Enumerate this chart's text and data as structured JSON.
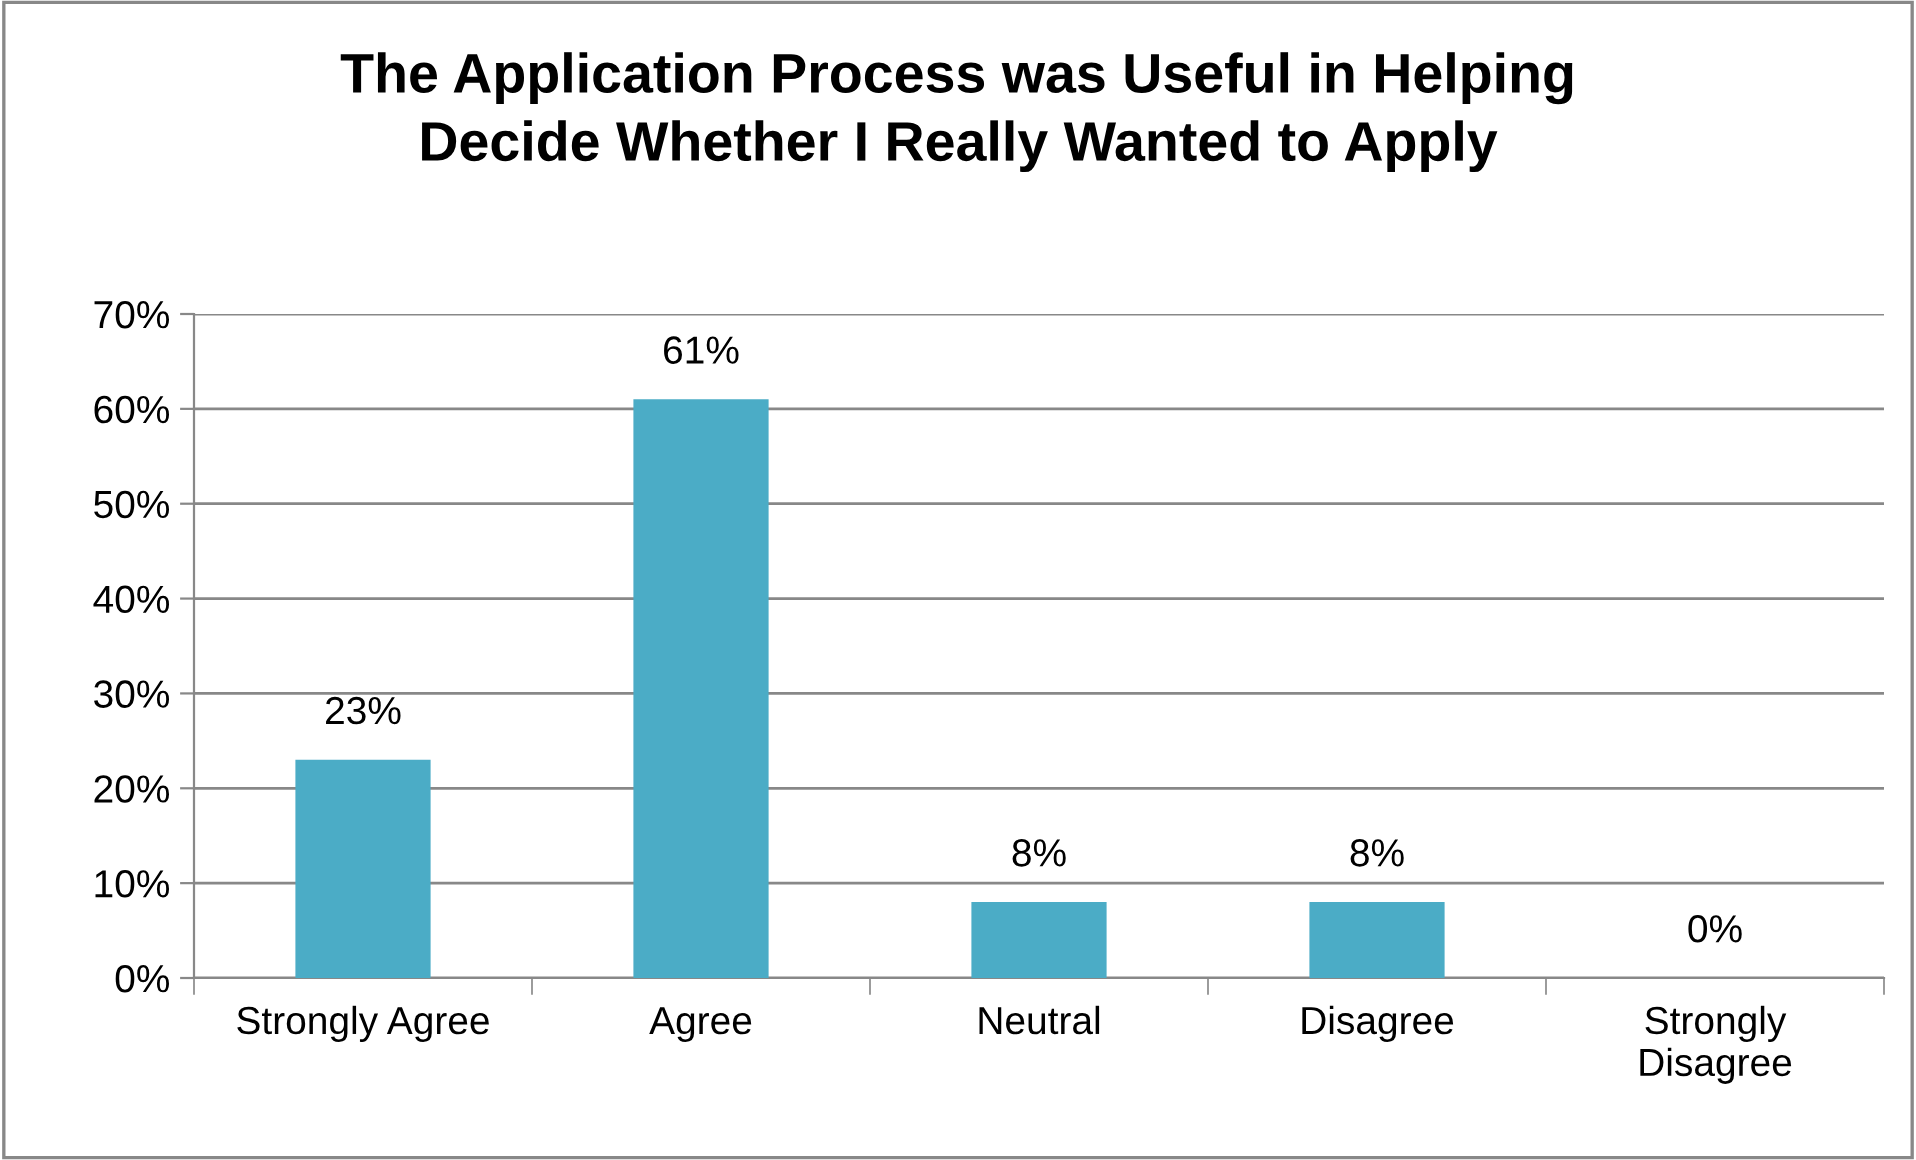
{
  "chart_data": {
    "type": "bar",
    "title": "The Application Process was Useful in Helping\nDecide Whether I Really Wanted to Apply",
    "categories": [
      "Strongly Agree",
      "Agree",
      "Neutral",
      "Disagree",
      "Strongly\nDisagree"
    ],
    "values": [
      23,
      61,
      8,
      8,
      0
    ],
    "value_labels": [
      "23%",
      "61%",
      "8%",
      "8%",
      "0%"
    ],
    "color": "#4bacc6",
    "ylim": [
      0,
      70
    ],
    "yticks": [
      {
        "value": 0,
        "label": "0%"
      },
      {
        "value": 10,
        "label": "10%"
      },
      {
        "value": 20,
        "label": "20%"
      },
      {
        "value": 30,
        "label": "30%"
      },
      {
        "value": 40,
        "label": "40%"
      },
      {
        "value": 50,
        "label": "50%"
      },
      {
        "value": 60,
        "label": "60%"
      },
      {
        "value": 70,
        "label": "70%"
      }
    ],
    "grid": "y"
  }
}
